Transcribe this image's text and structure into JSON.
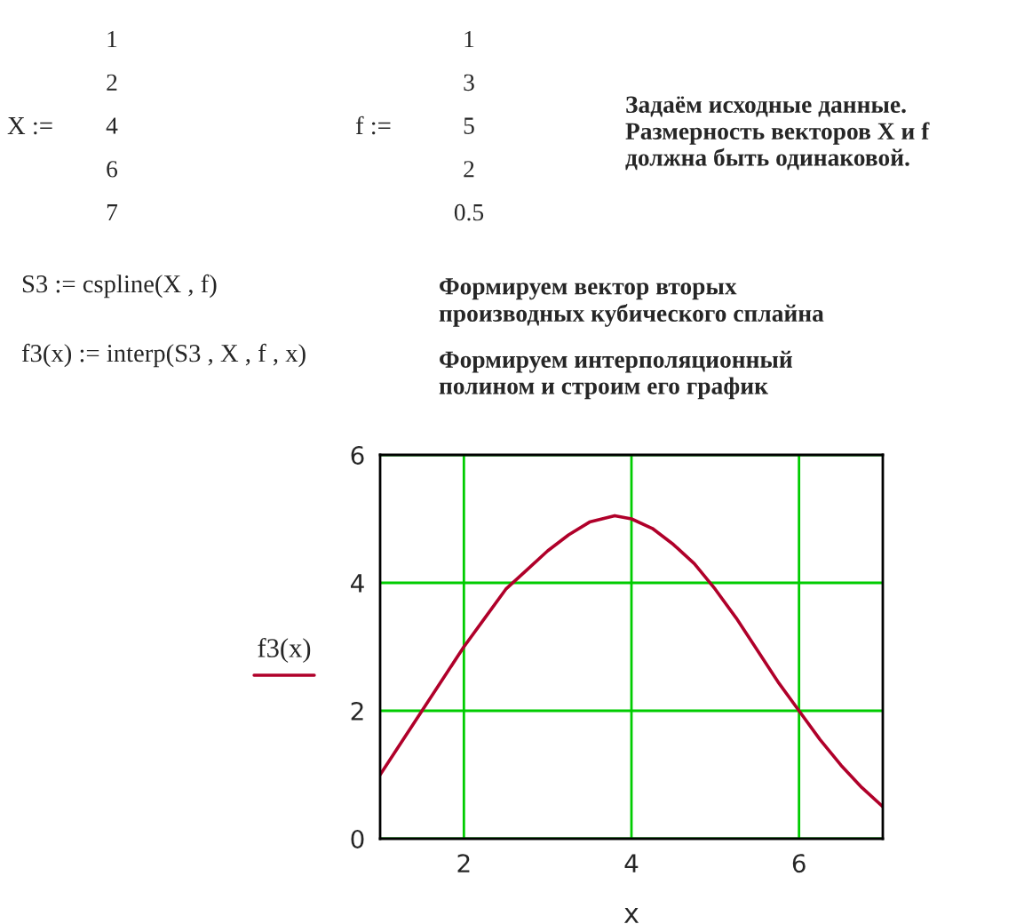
{
  "chart_data": {
    "type": "line",
    "xlabel": "x",
    "ylabel": "f3(x)",
    "x": [
      1,
      1.25,
      1.5,
      1.75,
      2,
      2.25,
      2.5,
      2.75,
      3,
      3.25,
      3.5,
      3.8,
      4,
      4.25,
      4.5,
      4.75,
      5,
      5.25,
      5.5,
      5.75,
      6,
      6.25,
      6.5,
      6.75,
      7
    ],
    "series": [
      {
        "color": "#b0002a",
        "values": [
          1.0,
          1.5,
          2.0,
          2.5,
          3.0,
          3.45,
          3.9,
          4.2,
          4.5,
          4.75,
          4.95,
          5.05,
          5.0,
          4.85,
          4.6,
          4.3,
          3.9,
          3.45,
          2.95,
          2.45,
          2.0,
          1.55,
          1.15,
          0.8,
          0.5
        ]
      }
    ],
    "xlim": [
      1,
      7
    ],
    "ylim": [
      0,
      6
    ],
    "xticks": [
      2,
      4,
      6
    ],
    "yticks": [
      0,
      2,
      4,
      6
    ],
    "grid": true,
    "annotations": [
      "X :=",
      "1\n2\n4\n6\n7",
      "f :=",
      "1\n3\n5\n2\n0.5",
      "Задаём исходные данные.\nРазмерность векторов X и f\nдолжна быть одинаковой.",
      "S3 := cspline(X , f)",
      "f3(x) := interp(S3 , X , f , x)",
      "Формируем вектор вторых\nпроизводных кубического сплайна",
      "Формируем интерполяционный\nполином и строим его график"
    ]
  }
}
